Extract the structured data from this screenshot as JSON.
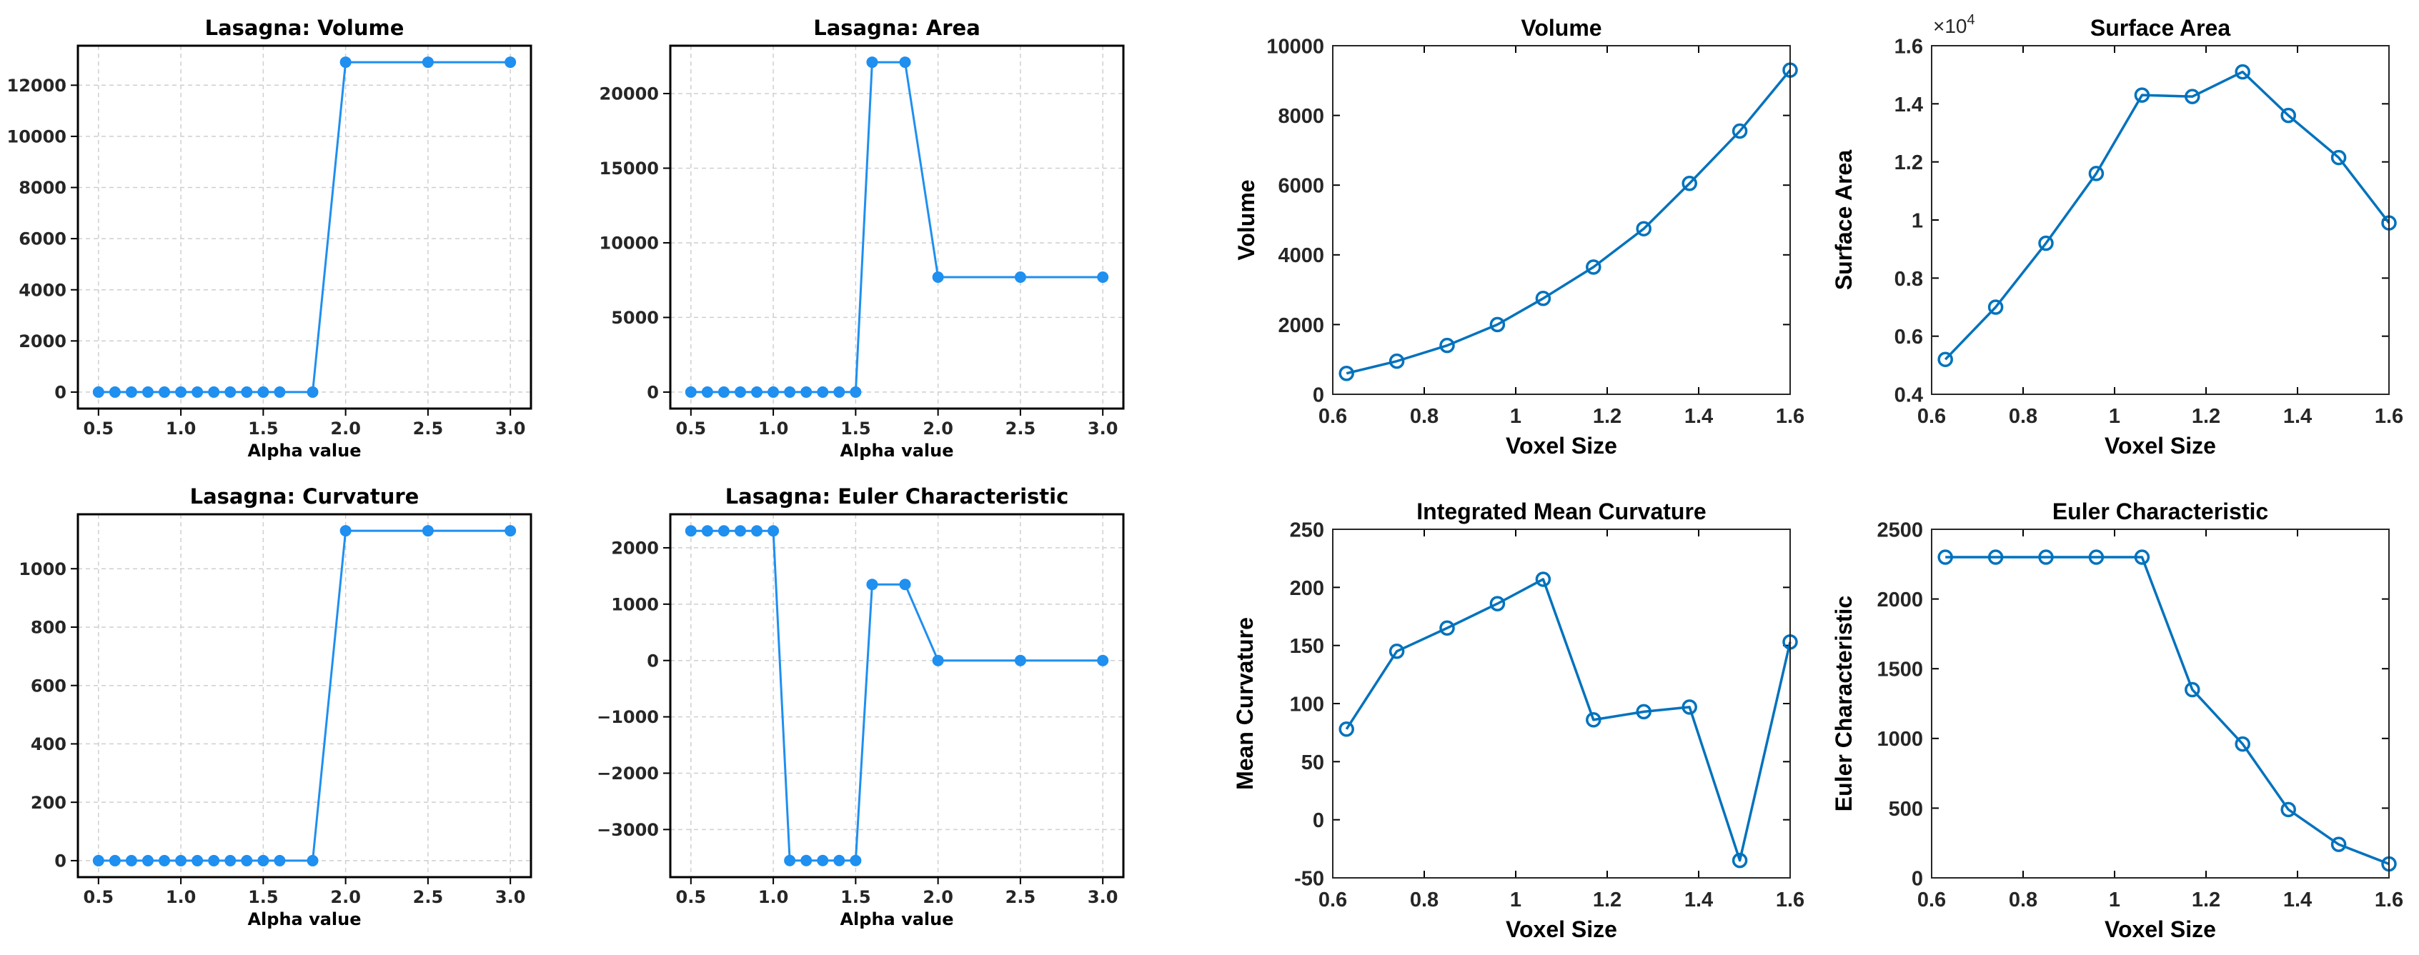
{
  "chart_data": [
    {
      "type": "line",
      "style": "matplotlib",
      "title": "Lasagna: Volume",
      "xlabel": "Alpha value",
      "ylabel": "",
      "x": [
        0.5,
        0.6,
        0.7,
        0.8,
        0.9,
        1.0,
        1.1,
        1.2,
        1.3,
        1.4,
        1.5,
        1.6,
        1.8,
        2.0,
        2.5,
        3.0
      ],
      "series": [
        {
          "name": "Volume",
          "values": [
            0,
            0,
            0,
            0,
            0,
            0,
            0,
            0,
            0,
            0,
            0,
            0,
            0,
            12900,
            12900,
            12900
          ]
        }
      ],
      "xlim": [
        0.375,
        3.125
      ],
      "ylim": [
        -645,
        13545
      ],
      "xticks": [
        0.5,
        1.0,
        1.5,
        2.0,
        2.5,
        3.0
      ],
      "xtick_labels": [
        "0.5",
        "1.0",
        "1.5",
        "2.0",
        "2.5",
        "3.0"
      ],
      "yticks": [
        0,
        2000,
        4000,
        6000,
        8000,
        10000,
        12000
      ],
      "ytick_labels": [
        "0",
        "2000",
        "4000",
        "6000",
        "8000",
        "10000",
        "12000"
      ],
      "grid": true,
      "color": "#1f8ff0"
    },
    {
      "type": "line",
      "style": "matplotlib",
      "title": "Lasagna: Area",
      "xlabel": "Alpha value",
      "ylabel": "",
      "x": [
        0.5,
        0.6,
        0.7,
        0.8,
        0.9,
        1.0,
        1.1,
        1.2,
        1.3,
        1.4,
        1.5,
        1.6,
        1.8,
        2.0,
        2.5,
        3.0
      ],
      "series": [
        {
          "name": "Area",
          "values": [
            0,
            0,
            0,
            0,
            0,
            0,
            0,
            0,
            0,
            0,
            0,
            22100,
            22100,
            7700,
            7700,
            7700
          ]
        }
      ],
      "xlim": [
        0.375,
        3.125
      ],
      "ylim": [
        -1105,
        23205
      ],
      "xticks": [
        0.5,
        1.0,
        1.5,
        2.0,
        2.5,
        3.0
      ],
      "xtick_labels": [
        "0.5",
        "1.0",
        "1.5",
        "2.0",
        "2.5",
        "3.0"
      ],
      "yticks": [
        0,
        5000,
        10000,
        15000,
        20000
      ],
      "ytick_labels": [
        "0",
        "5000",
        "10000",
        "15000",
        "20000"
      ],
      "grid": true,
      "color": "#1f8ff0"
    },
    {
      "type": "line",
      "style": "matplotlib",
      "title": "Lasagna: Curvature",
      "xlabel": "Alpha value",
      "ylabel": "",
      "x": [
        0.5,
        0.6,
        0.7,
        0.8,
        0.9,
        1.0,
        1.1,
        1.2,
        1.3,
        1.4,
        1.5,
        1.6,
        1.8,
        2.0,
        2.5,
        3.0
      ],
      "series": [
        {
          "name": "Curvature",
          "values": [
            0,
            0,
            0,
            0,
            0,
            0,
            0,
            0,
            0,
            0,
            0,
            0,
            0,
            1130,
            1130,
            1130
          ]
        }
      ],
      "xlim": [
        0.375,
        3.125
      ],
      "ylim": [
        -56.5,
        1186.5
      ],
      "xticks": [
        0.5,
        1.0,
        1.5,
        2.0,
        2.5,
        3.0
      ],
      "xtick_labels": [
        "0.5",
        "1.0",
        "1.5",
        "2.0",
        "2.5",
        "3.0"
      ],
      "yticks": [
        0,
        200,
        400,
        600,
        800,
        1000
      ],
      "ytick_labels": [
        "0",
        "200",
        "400",
        "600",
        "800",
        "1000"
      ],
      "grid": true,
      "color": "#1f8ff0"
    },
    {
      "type": "line",
      "style": "matplotlib",
      "title": "Lasagna: Euler Characteristic",
      "xlabel": "Alpha value",
      "ylabel": "",
      "x": [
        0.5,
        0.6,
        0.7,
        0.8,
        0.9,
        1.0,
        1.1,
        1.2,
        1.3,
        1.4,
        1.5,
        1.6,
        1.8,
        2.0,
        2.5,
        3.0
      ],
      "series": [
        {
          "name": "Euler Characteristic",
          "values": [
            2300,
            2300,
            2300,
            2300,
            2300,
            2300,
            -3550,
            -3550,
            -3550,
            -3550,
            -3550,
            1350,
            1350,
            0,
            0,
            0
          ]
        }
      ],
      "xlim": [
        0.375,
        3.125
      ],
      "ylim": [
        -3845,
        2595
      ],
      "xticks": [
        0.5,
        1.0,
        1.5,
        2.0,
        2.5,
        3.0
      ],
      "xtick_labels": [
        "0.5",
        "1.0",
        "1.5",
        "2.0",
        "2.5",
        "3.0"
      ],
      "yticks": [
        -3000,
        -2000,
        -1000,
        0,
        1000,
        2000
      ],
      "ytick_labels": [
        "−3000",
        "−2000",
        "−1000",
        "0",
        "1000",
        "2000"
      ],
      "grid": true,
      "color": "#1f8ff0"
    },
    {
      "type": "line",
      "style": "matlab",
      "title": "Volume",
      "xlabel": "Voxel Size",
      "ylabel": "Volume",
      "x": [
        0.63,
        0.74,
        0.85,
        0.96,
        1.06,
        1.17,
        1.28,
        1.38,
        1.49,
        1.6
      ],
      "series": [
        {
          "name": "Volume",
          "values": [
            600,
            950,
            1400,
            2000,
            2750,
            3650,
            4750,
            6050,
            7550,
            9300
          ]
        }
      ],
      "xlim": [
        0.6,
        1.6
      ],
      "ylim": [
        0,
        10000
      ],
      "xticks": [
        0.6,
        0.8,
        1.0,
        1.2,
        1.4,
        1.6
      ],
      "xtick_labels": [
        "0.6",
        "0.8",
        "1",
        "1.2",
        "1.4",
        "1.6"
      ],
      "yticks": [
        0,
        2000,
        4000,
        6000,
        8000,
        10000
      ],
      "ytick_labels": [
        "0",
        "2000",
        "4000",
        "6000",
        "8000",
        "10000"
      ],
      "grid": false,
      "color": "#0072bd"
    },
    {
      "type": "line",
      "style": "matlab",
      "title": "Surface Area",
      "xlabel": "Voxel Size",
      "ylabel": "Surface Area",
      "multiplier_label": "×10",
      "multiplier_exponent": "4",
      "x": [
        0.63,
        0.74,
        0.85,
        0.96,
        1.06,
        1.17,
        1.28,
        1.38,
        1.49,
        1.6
      ],
      "series": [
        {
          "name": "Surface Area",
          "values": [
            0.52,
            0.7,
            0.92,
            1.16,
            1.43,
            1.425,
            1.51,
            1.36,
            1.215,
            0.99
          ]
        }
      ],
      "xlim": [
        0.6,
        1.6
      ],
      "ylim": [
        0.4,
        1.6
      ],
      "xticks": [
        0.6,
        0.8,
        1.0,
        1.2,
        1.4,
        1.6
      ],
      "xtick_labels": [
        "0.6",
        "0.8",
        "1",
        "1.2",
        "1.4",
        "1.6"
      ],
      "yticks": [
        0.4,
        0.6,
        0.8,
        1.0,
        1.2,
        1.4,
        1.6
      ],
      "ytick_labels": [
        "0.4",
        "0.6",
        "0.8",
        "1",
        "1.2",
        "1.4",
        "1.6"
      ],
      "grid": false,
      "color": "#0072bd"
    },
    {
      "type": "line",
      "style": "matlab",
      "title": "Integrated Mean Curvature",
      "xlabel": "Voxel Size",
      "ylabel": "Mean Curvature",
      "x": [
        0.63,
        0.74,
        0.85,
        0.96,
        1.06,
        1.17,
        1.28,
        1.38,
        1.49,
        1.6
      ],
      "series": [
        {
          "name": "Mean Curvature",
          "values": [
            78,
            145,
            165,
            186,
            207,
            86,
            93,
            97,
            -35,
            153
          ]
        }
      ],
      "xlim": [
        0.6,
        1.6
      ],
      "ylim": [
        -50,
        250
      ],
      "xticks": [
        0.6,
        0.8,
        1.0,
        1.2,
        1.4,
        1.6
      ],
      "xtick_labels": [
        "0.6",
        "0.8",
        "1",
        "1.2",
        "1.4",
        "1.6"
      ],
      "yticks": [
        -50,
        0,
        50,
        100,
        150,
        200,
        250
      ],
      "ytick_labels": [
        "-50",
        "0",
        "50",
        "100",
        "150",
        "200",
        "250"
      ],
      "grid": false,
      "color": "#0072bd"
    },
    {
      "type": "line",
      "style": "matlab",
      "title": "Euler Characteristic",
      "xlabel": "Voxel Size",
      "ylabel": "Euler Characteristic",
      "x": [
        0.63,
        0.74,
        0.85,
        0.96,
        1.06,
        1.17,
        1.28,
        1.38,
        1.49,
        1.6
      ],
      "series": [
        {
          "name": "Euler Characteristic",
          "values": [
            2300,
            2300,
            2300,
            2300,
            2300,
            1350,
            960,
            490,
            240,
            100
          ]
        }
      ],
      "xlim": [
        0.6,
        1.6
      ],
      "ylim": [
        0,
        2500
      ],
      "xticks": [
        0.6,
        0.8,
        1.0,
        1.2,
        1.4,
        1.6
      ],
      "xtick_labels": [
        "0.6",
        "0.8",
        "1",
        "1.2",
        "1.4",
        "1.6"
      ],
      "yticks": [
        0,
        500,
        1000,
        1500,
        2000,
        2500
      ],
      "ytick_labels": [
        "0",
        "500",
        "1000",
        "1500",
        "2000",
        "2500"
      ],
      "grid": false,
      "color": "#0072bd"
    }
  ]
}
